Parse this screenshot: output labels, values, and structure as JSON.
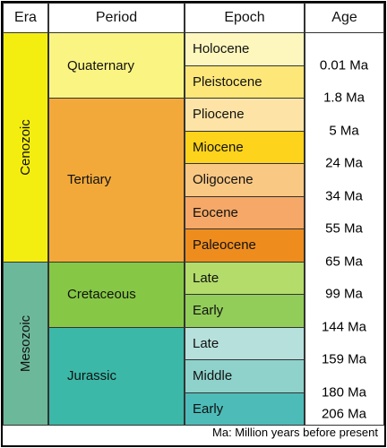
{
  "header": [
    "Era",
    "Period",
    "Epoch",
    "Age"
  ],
  "eras": [
    {
      "name": "Cenozoic",
      "periods": [
        {
          "name": "Quaternary",
          "epochs": [
            "Holocene",
            "Pleistocene"
          ]
        },
        {
          "name": "Tertiary",
          "epochs": [
            "Pliocene",
            "Miocene",
            "Oligocene",
            "Eocene",
            "Paleocene"
          ]
        }
      ]
    },
    {
      "name": "Mesozoic",
      "periods": [
        {
          "name": "Cretaceous",
          "epochs": [
            "Late",
            "Early"
          ]
        },
        {
          "name": "Jurassic",
          "epochs": [
            "Late",
            "Middle",
            "Early"
          ]
        }
      ]
    }
  ],
  "ages": [
    "0.01 Ma",
    "1.8 Ma",
    "5 Ma",
    "24 Ma",
    "34 Ma",
    "55 Ma",
    "65 Ma",
    "99 Ma",
    "144 Ma",
    "159 Ma",
    "180 Ma",
    "206 Ma"
  ],
  "footer": "Ma: Million years before present"
}
